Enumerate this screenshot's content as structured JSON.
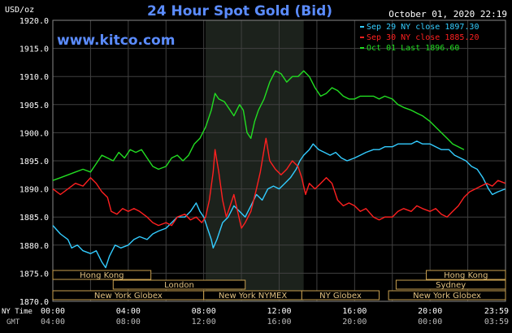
{
  "header": {
    "title": "24 Hour Spot Gold (Bid)",
    "unit": "USD/oz",
    "timestamp": "October 01, 2020 22:19",
    "watermark": "www.kitco.com"
  },
  "chart_data": {
    "type": "line",
    "title": "24 Hour Spot Gold (Bid)",
    "ylabel": "USD/oz",
    "ylim": [
      1870,
      1920
    ],
    "xlim_hours": [
      0,
      24
    ],
    "grid": true,
    "legend_position": "top-right",
    "y_ticks": [
      "1920.0",
      "1915.0",
      "1910.0",
      "1905.0",
      "1900.0",
      "1895.0",
      "1890.0",
      "1885.0",
      "1880.0",
      "1875.0",
      "1870.0"
    ],
    "y_tick_values": [
      1920,
      1915,
      1910,
      1905,
      1900,
      1895,
      1890,
      1885,
      1880,
      1875,
      1870
    ],
    "x_axis_ny": {
      "label": "NY Time",
      "ticks": [
        "00:00",
        "04:00",
        "08:00",
        "12:00",
        "16:00",
        "20:00",
        "23:59"
      ]
    },
    "x_axis_gmt": {
      "label": "GMT",
      "ticks": [
        "04:00",
        "08:00",
        "12:00",
        "16:00",
        "20:00",
        "00:00",
        "03:59"
      ]
    },
    "x_tick_hours": [
      0,
      4,
      8,
      12,
      16,
      20,
      24
    ],
    "series": [
      {
        "name": "Sep 29 NY close 1897.30",
        "color": "#33ccff",
        "points": [
          [
            0,
            1883.5
          ],
          [
            0.4,
            1882
          ],
          [
            0.8,
            1881
          ],
          [
            1,
            1879.5
          ],
          [
            1.3,
            1880
          ],
          [
            1.6,
            1879
          ],
          [
            2,
            1878.5
          ],
          [
            2.3,
            1879
          ],
          [
            2.6,
            1877
          ],
          [
            2.8,
            1876
          ],
          [
            3,
            1878
          ],
          [
            3.3,
            1880
          ],
          [
            3.6,
            1879.5
          ],
          [
            4,
            1880
          ],
          [
            4.3,
            1881
          ],
          [
            4.6,
            1881.5
          ],
          [
            5,
            1881
          ],
          [
            5.3,
            1882
          ],
          [
            5.6,
            1882.5
          ],
          [
            6,
            1883
          ],
          [
            6.3,
            1884
          ],
          [
            6.6,
            1885
          ],
          [
            7,
            1885
          ],
          [
            7.3,
            1886
          ],
          [
            7.6,
            1887.5
          ],
          [
            7.8,
            1886
          ],
          [
            8,
            1885
          ],
          [
            8.2,
            1883
          ],
          [
            8.4,
            1881
          ],
          [
            8.5,
            1879.5
          ],
          [
            8.7,
            1881
          ],
          [
            9,
            1884
          ],
          [
            9.3,
            1885
          ],
          [
            9.6,
            1887
          ],
          [
            9.9,
            1886
          ],
          [
            10.2,
            1885
          ],
          [
            10.5,
            1887
          ],
          [
            10.8,
            1889
          ],
          [
            11.1,
            1888
          ],
          [
            11.4,
            1890
          ],
          [
            11.7,
            1890.5
          ],
          [
            12,
            1890
          ],
          [
            12.3,
            1891
          ],
          [
            12.6,
            1892
          ],
          [
            12.9,
            1893.5
          ],
          [
            13.1,
            1895
          ],
          [
            13.3,
            1896
          ],
          [
            13.6,
            1897
          ],
          [
            13.8,
            1898
          ],
          [
            14.1,
            1897
          ],
          [
            14.4,
            1896.5
          ],
          [
            14.7,
            1896
          ],
          [
            15,
            1896.5
          ],
          [
            15.3,
            1895.5
          ],
          [
            15.6,
            1895
          ],
          [
            16,
            1895.5
          ],
          [
            16.3,
            1896
          ],
          [
            16.6,
            1896.5
          ],
          [
            17,
            1897
          ],
          [
            17.3,
            1897
          ],
          [
            17.6,
            1897.5
          ],
          [
            18,
            1897.5
          ],
          [
            18.3,
            1898
          ],
          [
            18.6,
            1898
          ],
          [
            19,
            1898
          ],
          [
            19.3,
            1898.5
          ],
          [
            19.6,
            1898
          ],
          [
            20,
            1898
          ],
          [
            20.3,
            1897.5
          ],
          [
            20.6,
            1897
          ],
          [
            21,
            1897
          ],
          [
            21.3,
            1896
          ],
          [
            21.6,
            1895.5
          ],
          [
            21.9,
            1895
          ],
          [
            22.2,
            1894
          ],
          [
            22.5,
            1893.5
          ],
          [
            22.8,
            1892
          ],
          [
            23.1,
            1890
          ],
          [
            23.3,
            1889
          ],
          [
            23.6,
            1889.5
          ],
          [
            23.99,
            1890
          ]
        ]
      },
      {
        "name": "Sep 30 NY close 1885.20",
        "color": "#ff2020",
        "points": [
          [
            0,
            1890
          ],
          [
            0.4,
            1889
          ],
          [
            0.8,
            1890
          ],
          [
            1.2,
            1891
          ],
          [
            1.6,
            1890.5
          ],
          [
            2,
            1892
          ],
          [
            2.3,
            1891
          ],
          [
            2.6,
            1889.5
          ],
          [
            2.9,
            1888.5
          ],
          [
            3.1,
            1886
          ],
          [
            3.4,
            1885.5
          ],
          [
            3.7,
            1886.5
          ],
          [
            4,
            1886
          ],
          [
            4.3,
            1886.5
          ],
          [
            4.6,
            1886
          ],
          [
            5,
            1885
          ],
          [
            5.3,
            1884
          ],
          [
            5.6,
            1883.5
          ],
          [
            6,
            1884
          ],
          [
            6.3,
            1883.5
          ],
          [
            6.6,
            1885
          ],
          [
            7,
            1885.5
          ],
          [
            7.3,
            1884.5
          ],
          [
            7.6,
            1885
          ],
          [
            7.9,
            1884
          ],
          [
            8.1,
            1885
          ],
          [
            8.3,
            1888
          ],
          [
            8.5,
            1893
          ],
          [
            8.6,
            1897
          ],
          [
            8.8,
            1893
          ],
          [
            9,
            1888
          ],
          [
            9.2,
            1885
          ],
          [
            9.4,
            1887
          ],
          [
            9.6,
            1889
          ],
          [
            9.8,
            1886
          ],
          [
            10,
            1883
          ],
          [
            10.2,
            1884
          ],
          [
            10.5,
            1886
          ],
          [
            10.8,
            1890
          ],
          [
            11,
            1893
          ],
          [
            11.3,
            1899
          ],
          [
            11.5,
            1895
          ],
          [
            11.8,
            1893.5
          ],
          [
            12.1,
            1892.5
          ],
          [
            12.4,
            1893.5
          ],
          [
            12.7,
            1895
          ],
          [
            13,
            1894
          ],
          [
            13.2,
            1892
          ],
          [
            13.4,
            1889
          ],
          [
            13.6,
            1891
          ],
          [
            13.9,
            1890
          ],
          [
            14.2,
            1891
          ],
          [
            14.5,
            1892
          ],
          [
            14.8,
            1891
          ],
          [
            15.1,
            1888
          ],
          [
            15.4,
            1887
          ],
          [
            15.7,
            1887.5
          ],
          [
            16,
            1887
          ],
          [
            16.3,
            1886
          ],
          [
            16.6,
            1886.5
          ],
          [
            17,
            1885
          ],
          [
            17.3,
            1884.5
          ],
          [
            17.6,
            1885
          ],
          [
            18,
            1885
          ],
          [
            18.3,
            1886
          ],
          [
            18.6,
            1886.5
          ],
          [
            19,
            1886
          ],
          [
            19.3,
            1887
          ],
          [
            19.6,
            1886.5
          ],
          [
            20,
            1886
          ],
          [
            20.3,
            1886.5
          ],
          [
            20.6,
            1885.5
          ],
          [
            20.9,
            1885
          ],
          [
            21.2,
            1886
          ],
          [
            21.5,
            1887
          ],
          [
            21.8,
            1888.5
          ],
          [
            22.1,
            1889.5
          ],
          [
            22.4,
            1890
          ],
          [
            22.7,
            1890.5
          ],
          [
            23,
            1891
          ],
          [
            23.3,
            1890.5
          ],
          [
            23.6,
            1891.5
          ],
          [
            23.99,
            1891
          ]
        ]
      },
      {
        "name": "Oct 01 Last 1896.60",
        "color": "#22dd22",
        "points": [
          [
            0,
            1891.5
          ],
          [
            0.4,
            1892
          ],
          [
            0.8,
            1892.5
          ],
          [
            1.2,
            1893
          ],
          [
            1.6,
            1893.5
          ],
          [
            2,
            1893
          ],
          [
            2.3,
            1894.5
          ],
          [
            2.6,
            1896
          ],
          [
            2.9,
            1895.5
          ],
          [
            3.2,
            1895
          ],
          [
            3.5,
            1896.5
          ],
          [
            3.8,
            1895.5
          ],
          [
            4.1,
            1897
          ],
          [
            4.4,
            1896.5
          ],
          [
            4.7,
            1897
          ],
          [
            5,
            1895.5
          ],
          [
            5.3,
            1894
          ],
          [
            5.6,
            1893.5
          ],
          [
            6,
            1894
          ],
          [
            6.3,
            1895.5
          ],
          [
            6.6,
            1896
          ],
          [
            6.9,
            1895
          ],
          [
            7.2,
            1896
          ],
          [
            7.5,
            1898
          ],
          [
            7.8,
            1899
          ],
          [
            8.1,
            1901
          ],
          [
            8.4,
            1904
          ],
          [
            8.6,
            1907
          ],
          [
            8.8,
            1906
          ],
          [
            9.1,
            1905.5
          ],
          [
            9.4,
            1904
          ],
          [
            9.6,
            1903
          ],
          [
            9.9,
            1905
          ],
          [
            10.1,
            1904
          ],
          [
            10.3,
            1900
          ],
          [
            10.5,
            1899
          ],
          [
            10.7,
            1902
          ],
          [
            10.9,
            1904
          ],
          [
            11.2,
            1906
          ],
          [
            11.5,
            1909
          ],
          [
            11.8,
            1911
          ],
          [
            12.1,
            1910.5
          ],
          [
            12.4,
            1909
          ],
          [
            12.7,
            1910
          ],
          [
            13,
            1910
          ],
          [
            13.3,
            1911
          ],
          [
            13.6,
            1910
          ],
          [
            13.9,
            1908
          ],
          [
            14.2,
            1906.5
          ],
          [
            14.5,
            1907
          ],
          [
            14.8,
            1908
          ],
          [
            15.1,
            1907.5
          ],
          [
            15.4,
            1906.5
          ],
          [
            15.7,
            1906
          ],
          [
            16,
            1906
          ],
          [
            16.3,
            1906.5
          ],
          [
            16.6,
            1906.5
          ],
          [
            17,
            1906.5
          ],
          [
            17.3,
            1906
          ],
          [
            17.6,
            1906.5
          ],
          [
            18,
            1906
          ],
          [
            18.3,
            1905
          ],
          [
            18.6,
            1904.5
          ],
          [
            19,
            1904
          ],
          [
            19.3,
            1903.5
          ],
          [
            19.6,
            1903
          ],
          [
            20,
            1902
          ],
          [
            20.3,
            1901
          ],
          [
            20.6,
            1900
          ],
          [
            20.9,
            1899
          ],
          [
            21.2,
            1898
          ],
          [
            21.5,
            1897.5
          ],
          [
            21.8,
            1897
          ]
        ]
      }
    ],
    "shaded_region_hours": [
      8.1,
      13.3
    ]
  },
  "sessions": {
    "row1": [
      {
        "label": "Hong Kong",
        "start": 0,
        "end": 5.2
      },
      {
        "label": "Hong Kong",
        "start": 19.8,
        "end": 24
      }
    ],
    "row2": [
      {
        "label": "London",
        "start": 3.2,
        "end": 10.2
      },
      {
        "label": "Sydney",
        "start": 18.2,
        "end": 24
      }
    ],
    "row3": [
      {
        "label": "New York Globex",
        "start": 0,
        "end": 8
      },
      {
        "label": "New York NYMEX",
        "start": 8.0,
        "end": 13.2
      },
      {
        "label": "NY Globex",
        "start": 13.2,
        "end": 17.3
      },
      {
        "label": "New York Globex",
        "start": 17.8,
        "end": 24
      }
    ]
  },
  "colors": {
    "background": "#000000",
    "plot_background": "#000000",
    "grid": "#404040",
    "axis_text": "#ffffff",
    "title": "#5b8cff",
    "watermark": "#5b8cff",
    "shade": "#1c221c",
    "session_box": "#c8a050",
    "session_text": "#e0c080"
  }
}
